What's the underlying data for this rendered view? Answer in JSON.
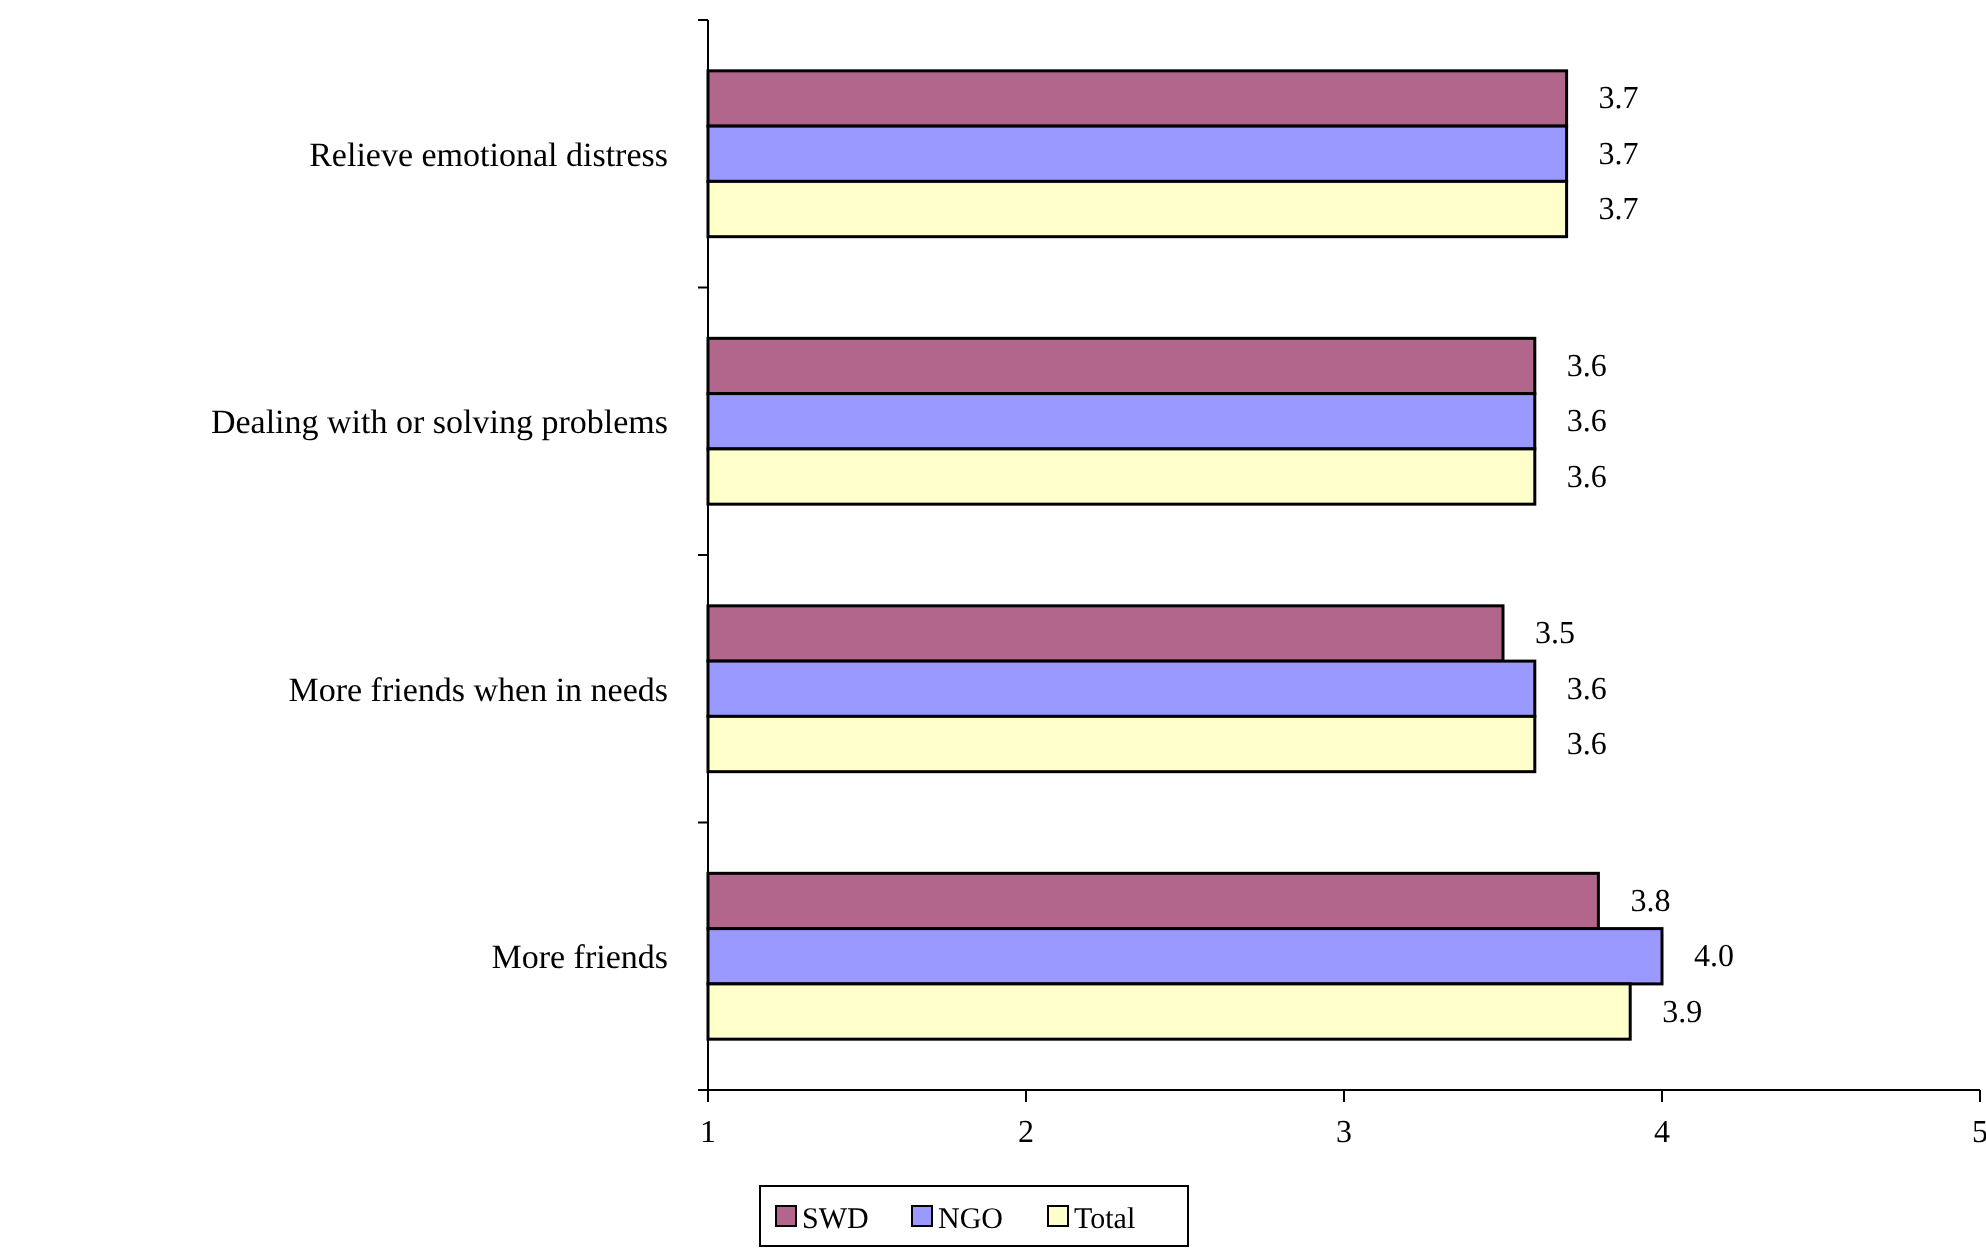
{
  "chart_data": {
    "type": "bar",
    "orientation": "horizontal",
    "categories": [
      "Relieve emotional distress",
      "Dealing with or solving problems",
      "More friends when in needs",
      "More friends"
    ],
    "series": [
      {
        "name": "SWD",
        "color": "#b3668c",
        "values": [
          3.7,
          3.6,
          3.5,
          3.8
        ],
        "value_labels": [
          "3.7",
          "3.6",
          "3.5",
          "3.8"
        ]
      },
      {
        "name": "NGO",
        "color": "#9999ff",
        "values": [
          3.7,
          3.6,
          3.6,
          4.0
        ],
        "value_labels": [
          "3.7",
          "3.6",
          "3.6",
          "4.0"
        ]
      },
      {
        "name": "Total",
        "color": "#ffffcc",
        "values": [
          3.7,
          3.6,
          3.6,
          3.9
        ],
        "value_labels": [
          "3.7",
          "3.6",
          "3.6",
          "3.9"
        ]
      }
    ],
    "xlim": [
      1,
      5
    ],
    "xticks": [
      1,
      2,
      3,
      4,
      5
    ],
    "grid": false,
    "legend": "bottom"
  }
}
